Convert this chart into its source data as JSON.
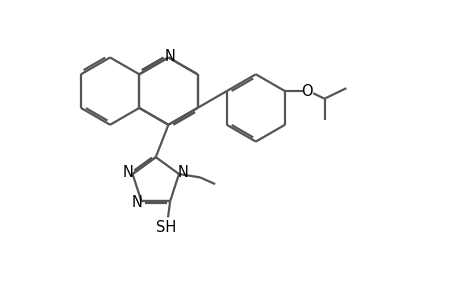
{
  "bg_color": "#ffffff",
  "bond_color": "#555555",
  "bond_width": 1.6,
  "label_color": "#000000",
  "label_fontsize": 10.5,
  "xlim": [
    0,
    10
  ],
  "ylim": [
    0,
    7
  ]
}
